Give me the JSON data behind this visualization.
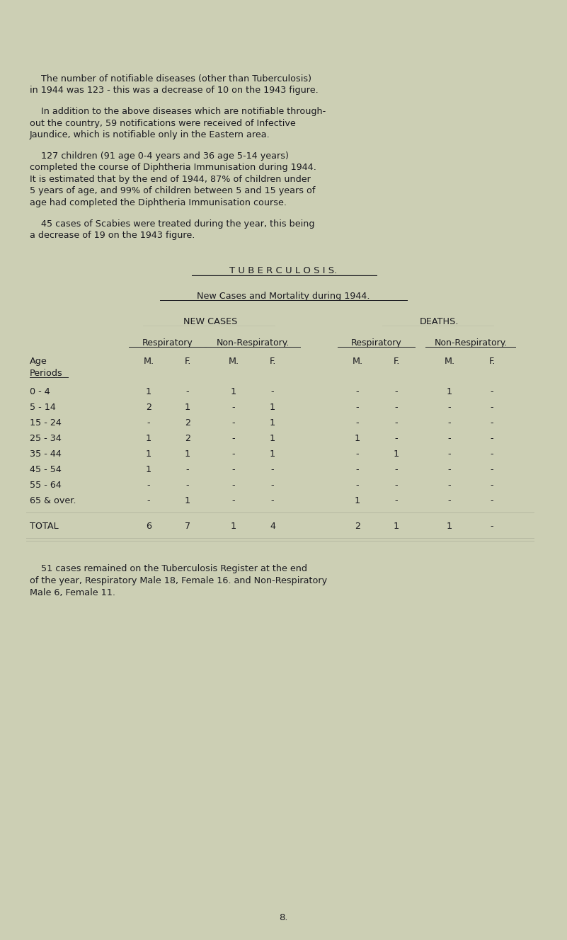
{
  "bg_color": "#cccfb4",
  "text_color": "#1a1a20",
  "font_family": "Courier New",
  "page_number": "8.",
  "para1_line1": "    The number of notifiable diseases (other than Tuberculosis)",
  "para1_line2": "in 1944 was 123 - this was a decrease of 10 on the 1943 figure.",
  "para2_line1": "    In addition to the above diseases which are notifiable through-",
  "para2_line2": "out the country, 59 notifications were received of Infective",
  "para2_line3": "Jaundice, which is notifiable only in the Eastern area.",
  "para3_line1": "    127 children (91 age 0-4 years and 36 age 5-14 years)",
  "para3_line2": "completed the course of Diphtheria Immunisation during 1944.",
  "para3_line3": "It is estimated that by the end of 1944, 87% of children under",
  "para3_line4": "5 years of age, and 99% of children between 5 and 15 years of",
  "para3_line5": "age had completed the Diphtheria Immunisation course.",
  "para4_line1": "    45 cases of Scabies were treated during the year, this being",
  "para4_line2": "a decrease of 19 on the 1943 figure.",
  "section_title": "T U B E R C U L O S I S.",
  "sub_title": "New Cases and Mortality during 1944.",
  "col_header1": "NEW CASES",
  "col_header2": "DEATHS.",
  "col_labels_mf": [
    "M.",
    "F.",
    "M.",
    "F.",
    "M.",
    "F.",
    "M.",
    "F."
  ],
  "age_periods": [
    "0 - 4",
    "5 - 14",
    "15 - 24",
    "25 - 34",
    "35 - 44",
    "45 - 54",
    "55 - 64",
    "65 & over."
  ],
  "table_data": [
    [
      "1",
      "-",
      "1",
      "-",
      "-",
      "-",
      "1",
      "-"
    ],
    [
      "2",
      "1",
      "-",
      "1",
      "-",
      "-",
      "-",
      "-"
    ],
    [
      "-",
      "2",
      "-",
      "1",
      "-",
      "-",
      "-",
      "-"
    ],
    [
      "1",
      "2",
      "-",
      "1",
      "1",
      "-",
      "-",
      "-"
    ],
    [
      "1",
      "1",
      "-",
      "1",
      "-",
      "1",
      "-",
      "-"
    ],
    [
      "1",
      "-",
      "-",
      "-",
      "-",
      "-",
      "-",
      "-"
    ],
    [
      "-",
      "-",
      "-",
      "-",
      "-",
      "-",
      "-",
      "-"
    ],
    [
      "-",
      "1",
      "-",
      "-",
      "1",
      "-",
      "-",
      "-"
    ]
  ],
  "totals": [
    "6",
    "7",
    "1",
    "4",
    "2",
    "1",
    "1",
    "-"
  ],
  "footer1_line1": "    51 cases remained on the Tuberculosis Register at the end",
  "footer1_line2": "of the year, Respiratory Male 18, Female 16. and Non-Respiratory",
  "footer1_line3": "Male 6, Female 11."
}
